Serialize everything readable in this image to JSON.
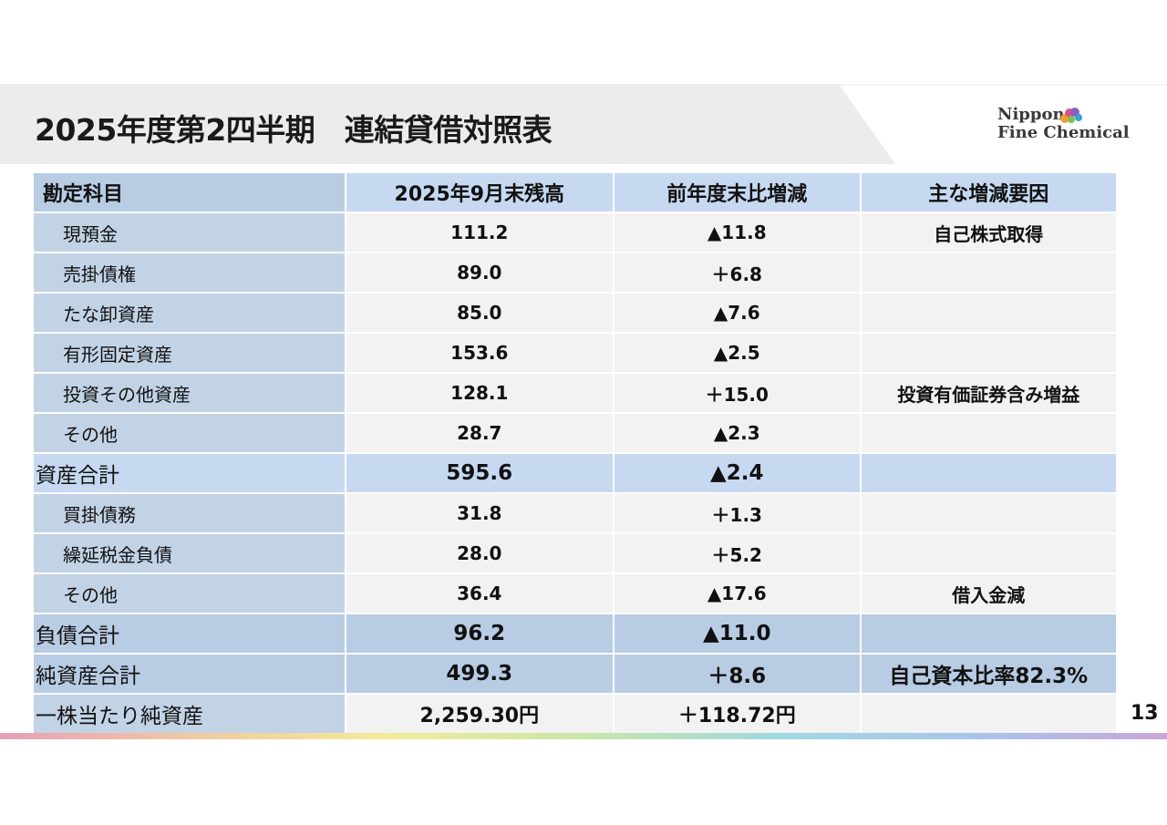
{
  "header": {
    "title": "2025年度第2四半期　連結貸借対照表",
    "logo": [
      "Nippon",
      "Fine Chemical"
    ]
  },
  "table": {
    "columns": [
      "勘定科目",
      "2025年9月末残高",
      "前年度末比増減",
      "主な増減要因"
    ],
    "rows": [
      [
        "現預金",
        "111.2",
        "▲11.8",
        "自己株式取得"
      ],
      [
        "売掛債権",
        "89.0",
        "＋6.8",
        null
      ],
      [
        "たな卸資産",
        "85.0",
        "▲7.6",
        null
      ],
      [
        "有形固定資産",
        "153.6",
        "▲2.5",
        null
      ],
      [
        "投資その他資産",
        "128.1",
        "＋15.0",
        "投資有価証券含み増益"
      ],
      [
        "その他",
        "28.7",
        "▲2.3",
        null
      ],
      [
        "資産合計",
        "595.6",
        "▲2.4",
        null
      ],
      [
        "買掛債務",
        "31.8",
        "＋1.3",
        null
      ],
      [
        "繰延税金負債",
        "28.0",
        "＋5.2",
        null
      ],
      [
        "その他",
        "36.4",
        "▲17.6",
        "借入金減"
      ],
      [
        "負債合計",
        "96.2",
        "▲11.0",
        null
      ],
      [
        "純資産合計",
        "499.3",
        "＋8.6",
        "自己資本比率82.3%"
      ],
      [
        "一株当たり純資産",
        "2,259.30円",
        "＋118.72円",
        null
      ]
    ]
  },
  "footer": {
    "page": "13"
  }
}
